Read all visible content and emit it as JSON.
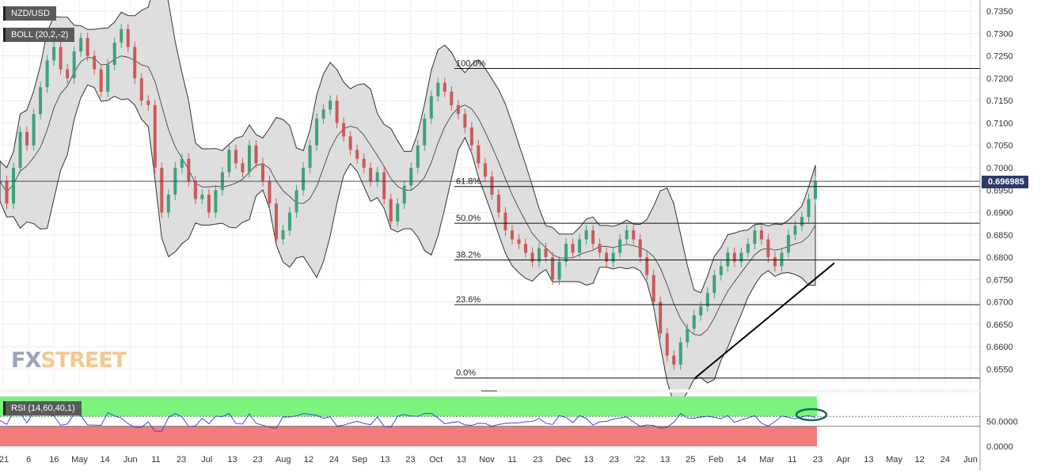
{
  "chart_data": {
    "type": "candlestick",
    "symbol": "NZD/USD",
    "indicators": {
      "bollinger_label": "BOLL (20,2,-2)",
      "rsi_label": "RSI (14,60,40,1)",
      "rsi_ticks": [
        "50.0000",
        "0.0000"
      ],
      "rsi_upper": 60,
      "rsi_lower": 40
    },
    "y_ticks": [
      "0.7350",
      "0.7300",
      "0.7250",
      "0.7200",
      "0.7150",
      "0.7100",
      "0.7050",
      "0.7000",
      "0.6950",
      "0.6900",
      "0.6850",
      "0.6800",
      "0.6750",
      "0.6700",
      "0.6650",
      "0.6600",
      "0.6550"
    ],
    "ylim": [
      0.651,
      0.7375
    ],
    "x_ticks": [
      "'21",
      "6",
      "16",
      "May",
      "14",
      "Jun",
      "11",
      "23",
      "Jul",
      "13",
      "23",
      "Aug",
      "12",
      "24",
      "Sep",
      "13",
      "23",
      "Oct",
      "13",
      "Nov",
      "11",
      "23",
      "Dec",
      "13",
      "23",
      "'22",
      "13",
      "25",
      "Feb",
      "14",
      "Mar",
      "11",
      "23",
      "Apr",
      "13",
      "May",
      "12",
      "24",
      "Jun"
    ],
    "current_price": "0.696985",
    "current_price_value": 0.69698,
    "fibonacci": [
      {
        "label": "100.0%",
        "value": 0.7222
      },
      {
        "label": "61.8%",
        "value": 0.6958
      },
      {
        "label": "50.0%",
        "value": 0.6876
      },
      {
        "label": "38.2%",
        "value": 0.6794
      },
      {
        "label": "23.6%",
        "value": 0.6694
      },
      {
        "label": "0.0%",
        "value": 0.653
      }
    ],
    "trendline": {
      "start_price": 0.653,
      "end_price": 0.6787
    },
    "price_path": [
      0.697,
      0.692,
      0.7,
      0.708,
      0.705,
      0.712,
      0.718,
      0.724,
      0.727,
      0.722,
      0.72,
      0.726,
      0.729,
      0.725,
      0.722,
      0.717,
      0.723,
      0.728,
      0.731,
      0.727,
      0.72,
      0.715,
      0.714,
      0.7,
      0.69,
      0.694,
      0.7,
      0.702,
      0.697,
      0.693,
      0.694,
      0.69,
      0.695,
      0.699,
      0.704,
      0.701,
      0.699,
      0.705,
      0.701,
      0.697,
      0.692,
      0.684,
      0.686,
      0.69,
      0.695,
      0.7,
      0.705,
      0.711,
      0.713,
      0.715,
      0.71,
      0.707,
      0.704,
      0.702,
      0.7,
      0.697,
      0.699,
      0.693,
      0.688,
      0.692,
      0.696,
      0.7,
      0.705,
      0.711,
      0.716,
      0.719,
      0.717,
      0.714,
      0.712,
      0.709,
      0.705,
      0.701,
      0.698,
      0.694,
      0.69,
      0.686,
      0.684,
      0.683,
      0.681,
      0.679,
      0.682,
      0.68,
      0.675,
      0.679,
      0.683,
      0.681,
      0.684,
      0.686,
      0.683,
      0.681,
      0.679,
      0.681,
      0.684,
      0.686,
      0.684,
      0.68,
      0.676,
      0.67,
      0.663,
      0.658,
      0.656,
      0.661,
      0.664,
      0.667,
      0.669,
      0.672,
      0.676,
      0.678,
      0.681,
      0.679,
      0.681,
      0.683,
      0.686,
      0.684,
      0.68,
      0.678,
      0.681,
      0.685,
      0.687,
      0.689,
      0.693,
      0.697
    ]
  }
}
